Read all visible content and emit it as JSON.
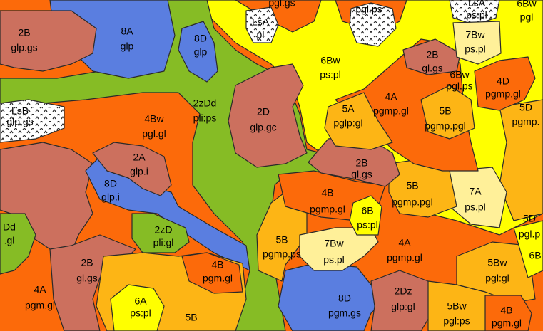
{
  "units": [
    {
      "desc": "pgl.gs"
    },
    {
      "desc": "pgl.ps"
    },
    {
      "code": "LsA",
      "desc": "pl"
    },
    {
      "code": "LsA",
      "desc": "ps:pl"
    },
    {
      "code": "6Bw",
      "desc": "pgl"
    },
    {
      "code": "2B",
      "desc": "glp.gs"
    },
    {
      "code": "8A",
      "desc": "glp"
    },
    {
      "code": "8D",
      "desc": "glp"
    },
    {
      "code": "7Bw",
      "desc": "ps.pl"
    },
    {
      "code": "6Bw",
      "desc": "ps:pl"
    },
    {
      "code": "2B",
      "desc": "gl.gs"
    },
    {
      "code": "6Bw",
      "desc": "pgl.ps"
    },
    {
      "code": "4D",
      "desc": "pgmp.gl"
    },
    {
      "code": "LsB",
      "desc": "glp.gs"
    },
    {
      "code": "2zDd",
      "desc": "pli:ps"
    },
    {
      "code": "2D",
      "desc": "glp.gc"
    },
    {
      "code": "4Bw",
      "desc": "pgl.gl"
    },
    {
      "code": "5A",
      "desc": "pglp:gl"
    },
    {
      "code": "4A",
      "desc": "pgmp.gl"
    },
    {
      "code": "5B",
      "desc": "pgmp.pgl"
    },
    {
      "code": "5D",
      "desc": "pgmp."
    },
    {
      "code": "2A",
      "desc": "glp.i"
    },
    {
      "code": "2B",
      "desc": "gl.gs"
    },
    {
      "code": "8D",
      "desc": "glp.i"
    },
    {
      "code": "4B",
      "desc": "pgmp.gl"
    },
    {
      "code": "5B",
      "desc": "pgmp.pgl"
    },
    {
      "code": "7A",
      "desc": "ps.pl"
    },
    {
      "code": "6B",
      "desc": "ps:pl"
    },
    {
      "code": "5D",
      "desc": "pgl.p"
    },
    {
      "code": "Dd",
      "desc": ".gl"
    },
    {
      "code": "2zD",
      "desc": "pli:gl"
    },
    {
      "code": "5B",
      "desc": "pgmp.ps"
    },
    {
      "code": "7Bw",
      "desc": "ps.pl"
    },
    {
      "code": "4A",
      "desc": "pgmp.gl"
    },
    {
      "code": "6B"
    },
    {
      "code": "2B",
      "desc": "gl.gs"
    },
    {
      "code": "4B",
      "desc": "pgm.gl"
    },
    {
      "code": "5Bw",
      "desc": "pgl:gl"
    },
    {
      "code": "4A",
      "desc": "pgm.gl"
    },
    {
      "code": "6A",
      "desc": "ps:pl"
    },
    {
      "code": "8D",
      "desc": "pgm.gs"
    },
    {
      "code": "2Dz",
      "desc": "glp:gl"
    },
    {
      "code": "5Bw",
      "desc": "pgl:ps"
    },
    {
      "code": "4B",
      "desc": "pgm.gl"
    },
    {
      "code": "5B"
    }
  ]
}
